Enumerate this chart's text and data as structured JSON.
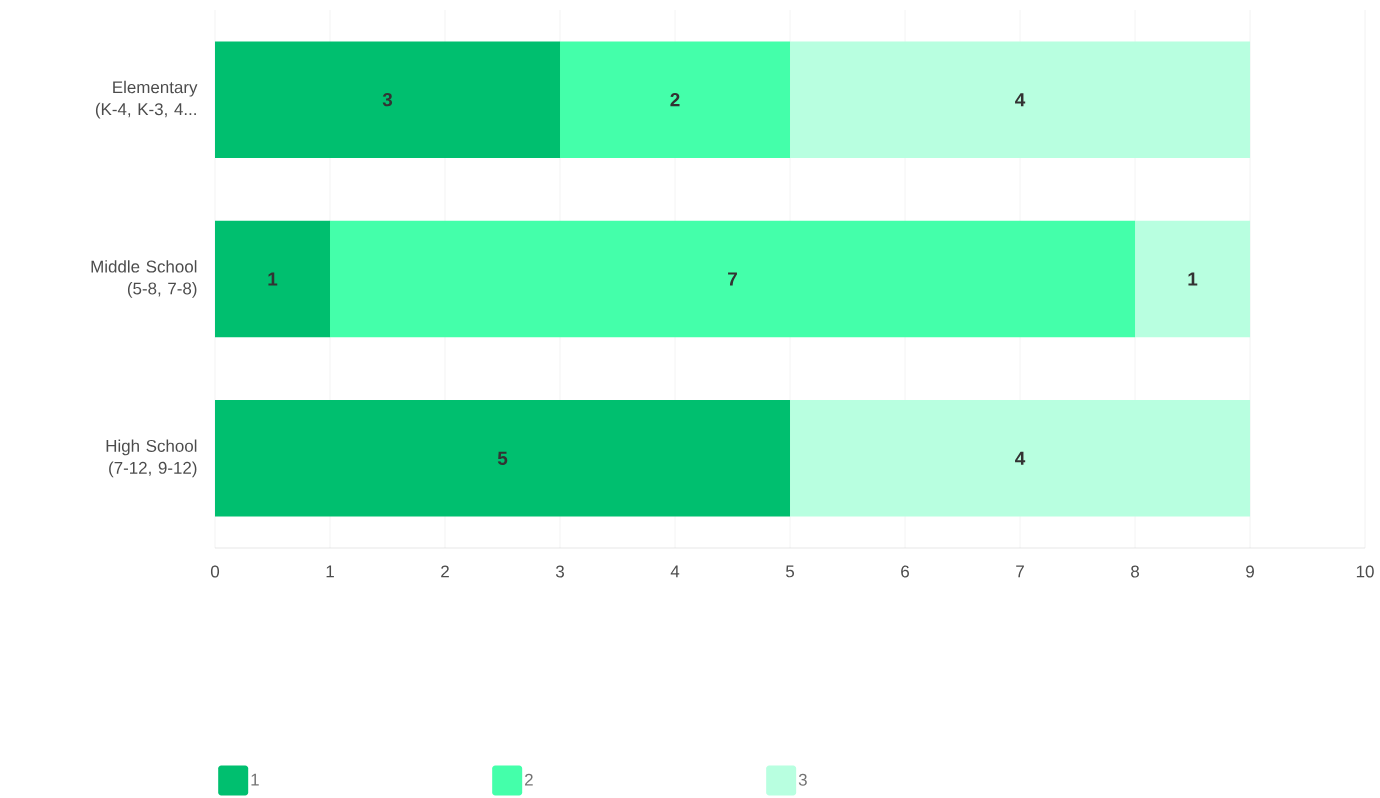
{
  "chart_data": {
    "type": "bar",
    "orientation": "horizontal",
    "stacked": true,
    "categories": [
      "Elementary (K-4, K-3, 4...",
      "Middle School (5-8, 7-8)",
      "High School (7-12, 9-12)"
    ],
    "series": [
      {
        "name": "1",
        "color": "#00bf6f",
        "values": [
          3,
          1,
          5
        ]
      },
      {
        "name": "2",
        "color": "#44ffaa",
        "values": [
          2,
          7,
          null
        ]
      },
      {
        "name": "3",
        "color": "#b8ffe0",
        "values": [
          4,
          1,
          4
        ]
      }
    ],
    "xlim": [
      0,
      10
    ],
    "xticks": [
      0,
      1,
      2,
      3,
      4,
      5,
      6,
      7,
      8,
      9,
      10
    ],
    "grid": "x",
    "legend": "bottom",
    "data_labels": true
  }
}
